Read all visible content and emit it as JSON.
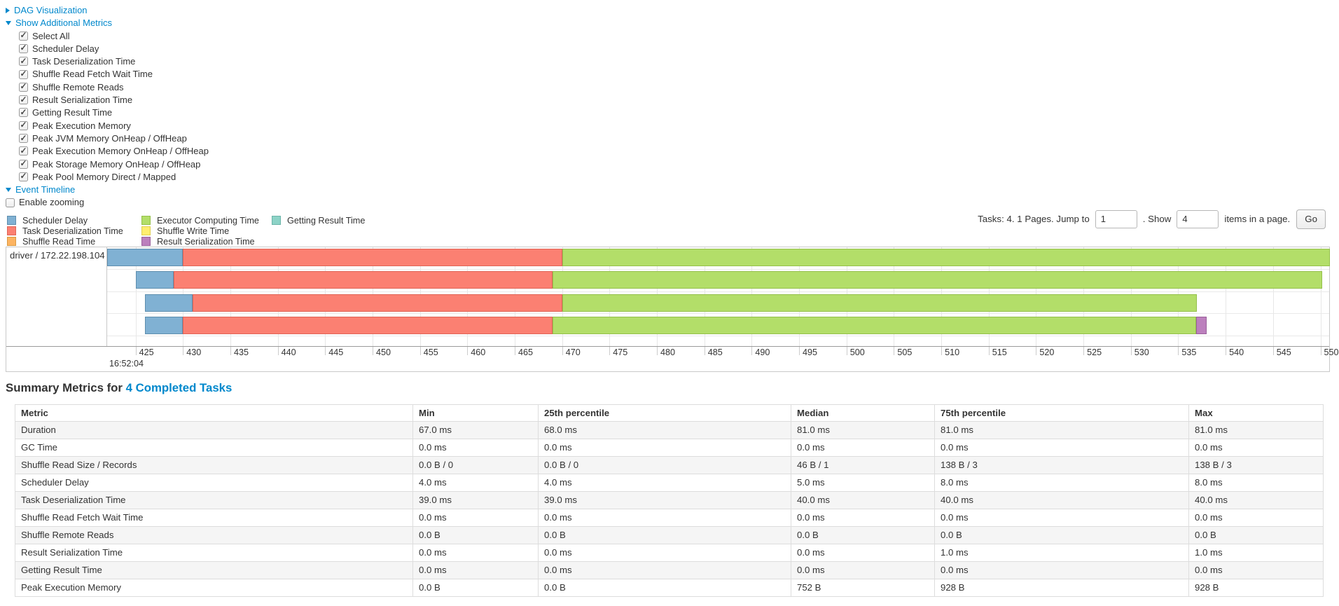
{
  "colors": {
    "link_blue": "#0088cc",
    "segment_types": {
      "scheduler_delay": {
        "fill": "#80B1D3",
        "border": "#5E8EAE"
      },
      "task_deserialization": {
        "fill": "#FB8072",
        "border": "#E06456"
      },
      "shuffle_read": {
        "fill": "#FDB462",
        "border": "#D99A43"
      },
      "executor_computing": {
        "fill": "#B3DE69",
        "border": "#94C04A"
      },
      "shuffle_write": {
        "fill": "#FFED6F",
        "border": "#E0CE50"
      },
      "result_serialization": {
        "fill": "#BC80BD",
        "border": "#9A609B"
      },
      "getting_result": {
        "fill": "#8DD3C7",
        "border": "#6BB4A8"
      }
    }
  },
  "nav": {
    "dag_link": "DAG Visualization",
    "metrics_link": "Show Additional Metrics",
    "timeline_link": "Event Timeline",
    "enable_zooming_label": "Enable zooming",
    "enable_zooming_checked": false
  },
  "metric_checkboxes": [
    {
      "label": "Select All",
      "checked": true
    },
    {
      "label": "Scheduler Delay",
      "checked": true
    },
    {
      "label": "Task Deserialization Time",
      "checked": true
    },
    {
      "label": "Shuffle Read Fetch Wait Time",
      "checked": true
    },
    {
      "label": "Shuffle Remote Reads",
      "checked": true
    },
    {
      "label": "Result Serialization Time",
      "checked": true
    },
    {
      "label": "Getting Result Time",
      "checked": true
    },
    {
      "label": "Peak Execution Memory",
      "checked": true
    },
    {
      "label": "Peak JVM Memory OnHeap / OffHeap",
      "checked": true
    },
    {
      "label": "Peak Execution Memory OnHeap / OffHeap",
      "checked": true
    },
    {
      "label": "Peak Storage Memory OnHeap / OffHeap",
      "checked": true
    },
    {
      "label": "Peak Pool Memory Direct / Mapped",
      "checked": true
    }
  ],
  "legend": [
    {
      "label": "Scheduler Delay",
      "type": "scheduler_delay",
      "column": 0
    },
    {
      "label": "Task Deserialization Time",
      "type": "task_deserialization",
      "column": 0
    },
    {
      "label": "Shuffle Read Time",
      "type": "shuffle_read",
      "column": 0
    },
    {
      "label": "Executor Computing Time",
      "type": "executor_computing",
      "column": 1
    },
    {
      "label": "Shuffle Write Time",
      "type": "shuffle_write",
      "column": 1
    },
    {
      "label": "Result Serialization Time",
      "type": "result_serialization",
      "column": 1
    },
    {
      "label": "Getting Result Time",
      "type": "getting_result",
      "column": 2
    }
  ],
  "pagination": {
    "prefix": "Tasks: 4. 1 Pages. Jump to",
    "jump_value": "1",
    "mid": ". Show",
    "show_value": "4",
    "suffix": "items in a page.",
    "go_label": "Go"
  },
  "chart_data": {
    "type": "timeline",
    "title": "Event Timeline",
    "group_label": "driver / 172.22.198.104",
    "axis": {
      "unit": "ms within second shown below",
      "major_label": "16:52:04",
      "domain": [
        422,
        551
      ],
      "ticks": [
        425,
        430,
        435,
        440,
        445,
        450,
        455,
        460,
        465,
        470,
        475,
        480,
        485,
        490,
        495,
        500,
        505,
        510,
        515,
        520,
        525,
        530,
        535,
        540,
        545,
        550
      ]
    },
    "tasks": [
      {
        "row": 0,
        "segments": [
          {
            "type": "scheduler_delay",
            "start": 422.0,
            "end": 430.0
          },
          {
            "type": "task_deserialization",
            "start": 430.0,
            "end": 470.0
          },
          {
            "type": "executor_computing",
            "start": 470.0,
            "end": 551.0
          }
        ]
      },
      {
        "row": 1,
        "segments": [
          {
            "type": "scheduler_delay",
            "start": 425.0,
            "end": 429.0
          },
          {
            "type": "task_deserialization",
            "start": 429.0,
            "end": 469.0
          },
          {
            "type": "executor_computing",
            "start": 469.0,
            "end": 550.2
          }
        ]
      },
      {
        "row": 2,
        "segments": [
          {
            "type": "scheduler_delay",
            "start": 426.0,
            "end": 431.0
          },
          {
            "type": "task_deserialization",
            "start": 431.0,
            "end": 470.0
          },
          {
            "type": "executor_computing",
            "start": 470.0,
            "end": 537.0
          }
        ]
      },
      {
        "row": 3,
        "segments": [
          {
            "type": "scheduler_delay",
            "start": 426.0,
            "end": 430.0
          },
          {
            "type": "task_deserialization",
            "start": 430.0,
            "end": 469.0
          },
          {
            "type": "executor_computing",
            "start": 469.0,
            "end": 536.9
          },
          {
            "type": "result_serialization",
            "start": 536.9,
            "end": 538.0
          }
        ]
      }
    ]
  },
  "summary": {
    "heading_prefix": "Summary Metrics for",
    "heading_link": "4 Completed Tasks",
    "table": {
      "headers": [
        "Metric",
        "Min",
        "25th percentile",
        "Median",
        "75th percentile",
        "Max"
      ],
      "rows": [
        [
          "Duration",
          "67.0 ms",
          "68.0 ms",
          "81.0 ms",
          "81.0 ms",
          "81.0 ms"
        ],
        [
          "GC Time",
          "0.0 ms",
          "0.0 ms",
          "0.0 ms",
          "0.0 ms",
          "0.0 ms"
        ],
        [
          "Shuffle Read Size / Records",
          "0.0 B / 0",
          "0.0 B / 0",
          "46 B / 1",
          "138 B / 3",
          "138 B / 3"
        ],
        [
          "Scheduler Delay",
          "4.0 ms",
          "4.0 ms",
          "5.0 ms",
          "8.0 ms",
          "8.0 ms"
        ],
        [
          "Task Deserialization Time",
          "39.0 ms",
          "39.0 ms",
          "40.0 ms",
          "40.0 ms",
          "40.0 ms"
        ],
        [
          "Shuffle Read Fetch Wait Time",
          "0.0 ms",
          "0.0 ms",
          "0.0 ms",
          "0.0 ms",
          "0.0 ms"
        ],
        [
          "Shuffle Remote Reads",
          "0.0 B",
          "0.0 B",
          "0.0 B",
          "0.0 B",
          "0.0 B"
        ],
        [
          "Result Serialization Time",
          "0.0 ms",
          "0.0 ms",
          "0.0 ms",
          "1.0 ms",
          "1.0 ms"
        ],
        [
          "Getting Result Time",
          "0.0 ms",
          "0.0 ms",
          "0.0 ms",
          "0.0 ms",
          "0.0 ms"
        ],
        [
          "Peak Execution Memory",
          "0.0 B",
          "0.0 B",
          "752 B",
          "928 B",
          "928 B"
        ]
      ]
    }
  }
}
